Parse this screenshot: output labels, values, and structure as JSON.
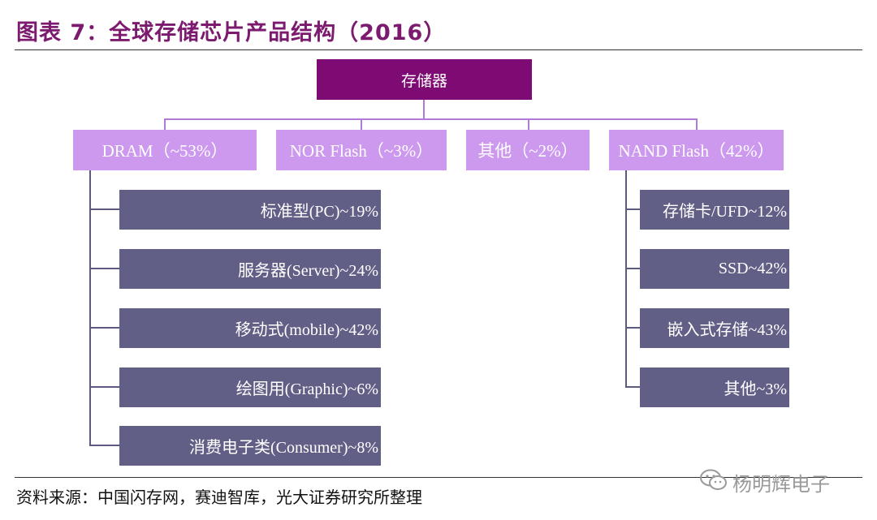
{
  "title": "图表 7：全球存储芯片产品结构（2016）",
  "root": {
    "label": "存储器"
  },
  "categories": [
    {
      "label": "DRAM（~53%）"
    },
    {
      "label": "NOR Flash（~3%）"
    },
    {
      "label": "其他（~2%）"
    },
    {
      "label": "NAND Flash（42%）"
    }
  ],
  "dram_items": [
    {
      "label": "标准型(PC)~19%"
    },
    {
      "label": "服务器(Server)~24%"
    },
    {
      "label": "移动式(mobile)~42%"
    },
    {
      "label": "绘图用(Graphic)~6%"
    },
    {
      "label": "消费电子类(Consumer)~8%"
    }
  ],
  "nand_items": [
    {
      "label": "存储卡/UFD~12%"
    },
    {
      "label": "SSD~42%"
    },
    {
      "label": "嵌入式存储~43%"
    },
    {
      "label": "其他~3%"
    }
  ],
  "source": "资料来源：中国闪存网，赛迪智库，光大证券研究所整理",
  "watermark": {
    "text": "杨明辉电子",
    "icon": "wechat-icon"
  },
  "colors": {
    "title": "#7b1a6e",
    "root": "#7e0a74",
    "category": "#cc99ee",
    "item": "#625f86"
  }
}
